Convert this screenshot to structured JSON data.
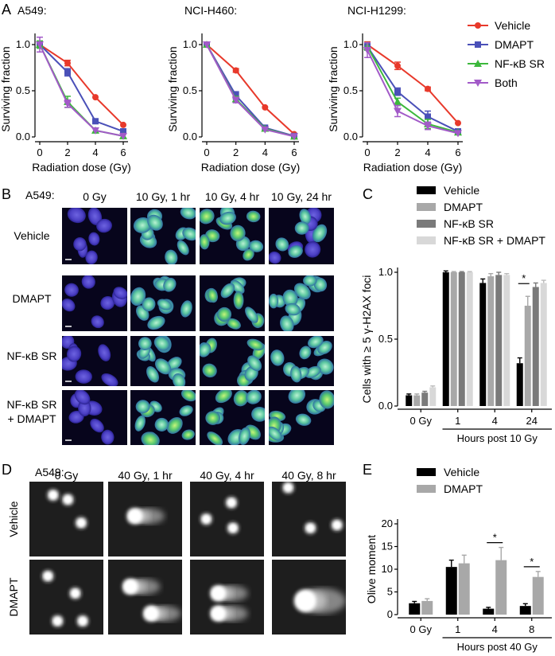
{
  "panels": {
    "A": {
      "letter": "A",
      "legend": [
        {
          "name": "Vehicle",
          "color": "#e8392b",
          "marker": "circle"
        },
        {
          "name": "DMAPT",
          "color": "#4a50b8",
          "marker": "square"
        },
        {
          "name": "NF-κB SR",
          "color": "#3cb83c",
          "marker": "triangle-up"
        },
        {
          "name": "Both",
          "color": "#a25ac8",
          "marker": "triangle-down"
        }
      ]
    },
    "B": {
      "letter": "B",
      "cell_line": "A549:",
      "columns": [
        "0 Gy",
        "10 Gy, 1 hr",
        "10 Gy, 4 hr",
        "10 Gy, 24 hr"
      ],
      "rows": [
        "Vehicle",
        "DMAPT",
        "NF-κB SR",
        "NF-κB SR",
        "+ DMAPT"
      ]
    },
    "C": {
      "letter": "C",
      "legend": [
        {
          "name": "Vehicle",
          "color": "#000000"
        },
        {
          "name": "DMAPT",
          "color": "#a8a8a8"
        },
        {
          "name": "NF-κB SR",
          "color": "#7a7a7a"
        },
        {
          "name": "NF-κB SR + DMAPT",
          "color": "#d8d8d8"
        }
      ],
      "group_caption": "Hours post 10 Gy"
    },
    "D": {
      "letter": "D",
      "cell_line": "A549:",
      "columns": [
        "0 Gy",
        "40 Gy, 1 hr",
        "40 Gy, 4 hr",
        "40 Gy, 8 hr"
      ],
      "rows": [
        "Vehicle",
        "DMAPT"
      ]
    },
    "E": {
      "letter": "E",
      "legend": [
        {
          "name": "Vehicle",
          "color": "#000000"
        },
        {
          "name": "DMAPT",
          "color": "#a8a8a8"
        }
      ],
      "group_caption": "Hours post 40 Gy"
    }
  },
  "chart_data": [
    {
      "type": "line",
      "title": "A549:",
      "xlabel": "Radiation dose (Gy)",
      "ylabel": "Surviving fraction",
      "x": [
        0,
        2,
        4,
        6
      ],
      "xlim": [
        0,
        6
      ],
      "ylim": [
        0,
        1.0
      ],
      "xticks": [
        "0",
        "2",
        "4",
        "6"
      ],
      "yticks": [
        "0.0",
        "0.5",
        "1.0"
      ],
      "series": [
        {
          "name": "Vehicle",
          "color": "#e8392b",
          "values": [
            1.0,
            0.8,
            0.43,
            0.13
          ],
          "errors": [
            0.02,
            0.03,
            0.01,
            0.01
          ]
        },
        {
          "name": "DMAPT",
          "color": "#4a50b8",
          "values": [
            1.0,
            0.7,
            0.17,
            0.06
          ],
          "errors": [
            0.02,
            0.04,
            0.02,
            0.01
          ]
        },
        {
          "name": "NF-κB SR",
          "color": "#3cb83c",
          "values": [
            1.0,
            0.38,
            0.07,
            0.01
          ],
          "errors": [
            0.04,
            0.06,
            0.01,
            0.005
          ]
        },
        {
          "name": "Both",
          "color": "#a25ac8",
          "values": [
            1.0,
            0.36,
            0.07,
            0.01
          ],
          "errors": [
            0.08,
            0.04,
            0.01,
            0.005
          ]
        }
      ]
    },
    {
      "type": "line",
      "title": "NCI-H460:",
      "xlabel": "Radiation dose (Gy)",
      "ylabel": "Surviving fraction",
      "x": [
        0,
        2,
        4,
        6
      ],
      "xlim": [
        0,
        6
      ],
      "ylim": [
        0,
        1.0
      ],
      "xticks": [
        "0",
        "2",
        "4",
        "6"
      ],
      "yticks": [
        "0.0",
        "0.5",
        "1.0"
      ],
      "series": [
        {
          "name": "Vehicle",
          "color": "#e8392b",
          "values": [
            1.0,
            0.72,
            0.32,
            0.03
          ],
          "errors": [
            0.01,
            0.02,
            0.01,
            0.005
          ]
        },
        {
          "name": "DMAPT",
          "color": "#4a50b8",
          "values": [
            1.0,
            0.45,
            0.1,
            0.01
          ],
          "errors": [
            0.01,
            0.04,
            0.01,
            0.005
          ]
        },
        {
          "name": "NF-κB SR",
          "color": "#3cb83c",
          "values": [
            1.0,
            0.41,
            0.09,
            0.005
          ],
          "errors": [
            0.01,
            0.03,
            0.01,
            0.005
          ]
        },
        {
          "name": "Both",
          "color": "#a25ac8",
          "values": [
            1.0,
            0.4,
            0.08,
            0.005
          ],
          "errors": [
            0.01,
            0.03,
            0.01,
            0.005
          ]
        }
      ]
    },
    {
      "type": "line",
      "title": "NCI-H1299:",
      "xlabel": "Radiation dose (Gy)",
      "ylabel": "Surviving fraction",
      "x": [
        0,
        2,
        4,
        6
      ],
      "xlim": [
        0,
        6
      ],
      "ylim": [
        0,
        1.0
      ],
      "xticks": [
        "0",
        "2",
        "4",
        "6"
      ],
      "yticks": [
        "0.0",
        "0.5",
        "1.0"
      ],
      "series": [
        {
          "name": "Vehicle",
          "color": "#e8392b",
          "values": [
            1.0,
            0.77,
            0.52,
            0.15
          ],
          "errors": [
            0.03,
            0.04,
            0.02,
            0.01
          ]
        },
        {
          "name": "DMAPT",
          "color": "#4a50b8",
          "values": [
            0.98,
            0.49,
            0.22,
            0.06
          ],
          "errors": [
            0.04,
            0.04,
            0.06,
            0.01
          ]
        },
        {
          "name": "NF-κB SR",
          "color": "#3cb83c",
          "values": [
            0.98,
            0.38,
            0.14,
            0.05
          ],
          "errors": [
            0.04,
            0.04,
            0.05,
            0.01
          ]
        },
        {
          "name": "Both",
          "color": "#a25ac8",
          "values": [
            0.94,
            0.28,
            0.12,
            0.04
          ],
          "errors": [
            0.08,
            0.06,
            0.04,
            0.01
          ]
        }
      ]
    },
    {
      "type": "bar",
      "ylabel": "Cells with ≥ 5 γ-H2AX foci",
      "categories": [
        "0 Gy",
        "1",
        "4",
        "24"
      ],
      "ylim": [
        0,
        1.0
      ],
      "yticks": [
        "0.0",
        "0.5",
        "1.0"
      ],
      "series": [
        {
          "name": "Vehicle",
          "color": "#000000",
          "values": [
            0.08,
            1.0,
            0.92,
            0.32
          ],
          "errors": [
            0.01,
            0.01,
            0.03,
            0.04
          ]
        },
        {
          "name": "DMAPT",
          "color": "#a8a8a8",
          "values": [
            0.08,
            1.0,
            0.97,
            0.75
          ],
          "errors": [
            0.01,
            0.005,
            0.02,
            0.07
          ]
        },
        {
          "name": "NF-κB SR",
          "color": "#7a7a7a",
          "values": [
            0.1,
            1.0,
            0.98,
            0.89
          ],
          "errors": [
            0.01,
            0.005,
            0.02,
            0.03
          ]
        },
        {
          "name": "NF-κB SR + DMAPT",
          "color": "#d8d8d8",
          "values": [
            0.14,
            1.0,
            0.98,
            0.92
          ],
          "errors": [
            0.01,
            0.005,
            0.01,
            0.02
          ]
        }
      ],
      "annotations": [
        "*"
      ]
    },
    {
      "type": "bar",
      "ylabel": "Olive moment",
      "categories": [
        "0 Gy",
        "1",
        "4",
        "8"
      ],
      "ylim": [
        0,
        20
      ],
      "yticks": [
        "0",
        "5",
        "10",
        "15",
        "20"
      ],
      "series": [
        {
          "name": "Vehicle",
          "color": "#000000",
          "values": [
            2.5,
            10.5,
            1.3,
            1.9
          ],
          "errors": [
            0.4,
            1.5,
            0.3,
            0.5
          ]
        },
        {
          "name": "DMAPT",
          "color": "#a8a8a8",
          "values": [
            3.0,
            11.3,
            12.0,
            8.3
          ],
          "errors": [
            0.5,
            1.8,
            2.8,
            1.2
          ]
        }
      ],
      "annotations": [
        "*",
        "*"
      ]
    }
  ]
}
